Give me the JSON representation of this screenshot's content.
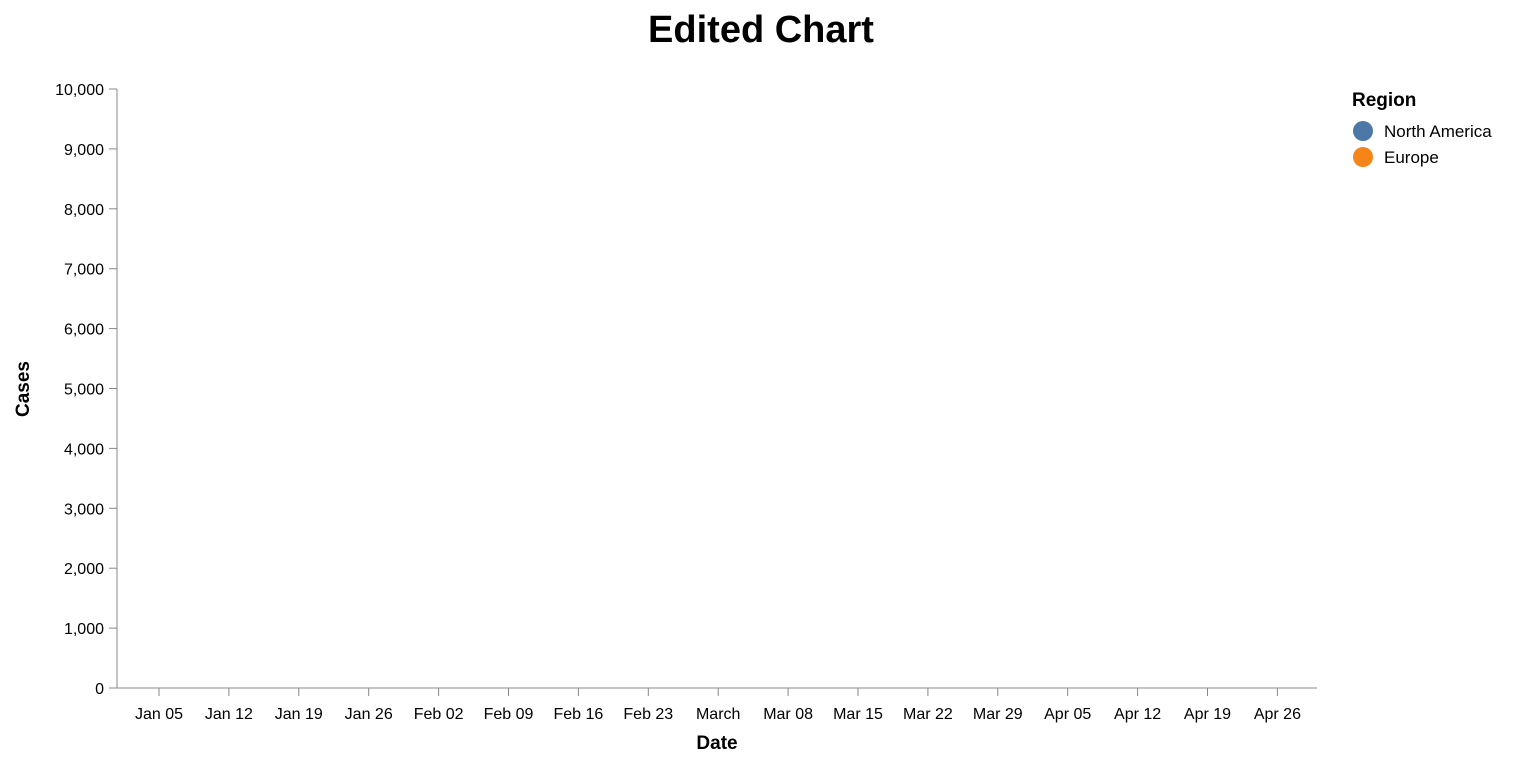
{
  "chart_data": {
    "type": "line",
    "title": "Edited Chart",
    "xlabel": "Date",
    "ylabel": "Cases",
    "x_ticks": [
      "Jan 05",
      "Jan 12",
      "Jan 19",
      "Jan 26",
      "Feb 02",
      "Feb 09",
      "Feb 16",
      "Feb 23",
      "March",
      "Mar 08",
      "Mar 15",
      "Mar 22",
      "Mar 29",
      "Apr 05",
      "Apr 12",
      "Apr 19",
      "Apr 26"
    ],
    "y_ticks": [
      "0",
      "1,000",
      "2,000",
      "3,000",
      "4,000",
      "5,000",
      "6,000",
      "7,000",
      "8,000",
      "9,000",
      "10,000"
    ],
    "ylim": [
      0,
      10000
    ],
    "grid": false,
    "legend": {
      "title": "Region",
      "placement": "top-right",
      "items": [
        {
          "name": "North America",
          "color": "#4c78a8"
        },
        {
          "name": "Europe",
          "color": "#f58518"
        }
      ]
    },
    "series": []
  }
}
